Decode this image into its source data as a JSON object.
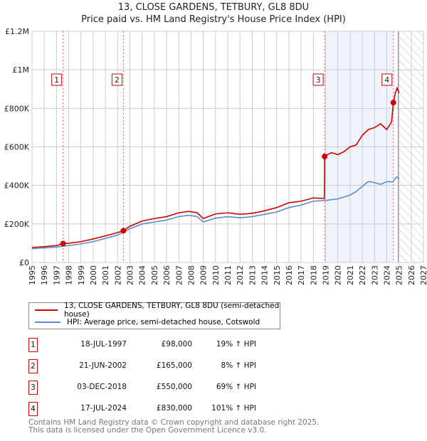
{
  "chart_data": {
    "type": "line",
    "title": "13, CLOSE GARDENS, TETBURY, GL8 8DU",
    "subtitle": "Price paid vs. HM Land Registry's House Price Index (HPI)",
    "xlim": [
      1995,
      2027
    ],
    "ylim": [
      0,
      1200000
    ],
    "x_ticks": [
      "1995",
      "1996",
      "1997",
      "1998",
      "1999",
      "2000",
      "2001",
      "2002",
      "2003",
      "2004",
      "2005",
      "2006",
      "2007",
      "2008",
      "2009",
      "2010",
      "2011",
      "2012",
      "2013",
      "2014",
      "2015",
      "2016",
      "2017",
      "2018",
      "2019",
      "2020",
      "2021",
      "2022",
      "2023",
      "2024",
      "2025",
      "2026",
      "2027"
    ],
    "y_ticks": [
      {
        "v": 0,
        "label": "£0"
      },
      {
        "v": 200000,
        "label": "£200K"
      },
      {
        "v": 400000,
        "label": "£400K"
      },
      {
        "v": 600000,
        "label": "£600K"
      },
      {
        "v": 800000,
        "label": "£800K"
      },
      {
        "v": 1000000,
        "label": "£1M"
      },
      {
        "v": 1200000,
        "label": "£1.2M"
      }
    ],
    "grid": true,
    "series": [
      {
        "name": "13, CLOSE GARDENS, TETBURY, GL8 8DU (semi-detached house)",
        "color": "#cc0000",
        "x": [
          1995,
          1996,
          1997,
          1997.54,
          1998,
          1999,
          2000,
          2001,
          2002,
          2002.47,
          2003,
          2004,
          2005,
          2006,
          2007,
          2007.8,
          2008.5,
          2009,
          2010,
          2011,
          2012,
          2013,
          2014,
          2015,
          2016,
          2017,
          2018,
          2018.9,
          2018.92,
          2019,
          2019.5,
          2020,
          2020.5,
          2021,
          2021.5,
          2022,
          2022.5,
          2023,
          2023.5,
          2024,
          2024.4,
          2024.54,
          2024.7,
          2024.85,
          2025
        ],
        "y": [
          78000,
          82000,
          88000,
          98000,
          100000,
          108000,
          122000,
          138000,
          155000,
          165000,
          188000,
          215000,
          228000,
          238000,
          258000,
          265000,
          258000,
          228000,
          252000,
          258000,
          250000,
          255000,
          268000,
          285000,
          310000,
          318000,
          335000,
          332000,
          550000,
          555000,
          570000,
          560000,
          575000,
          600000,
          610000,
          660000,
          690000,
          700000,
          720000,
          690000,
          730000,
          830000,
          880000,
          905000,
          880000
        ]
      },
      {
        "name": "HPI: Average price, semi-detached house, Cotswold",
        "color": "#5b8fd0",
        "x": [
          1995,
          1996,
          1997,
          1998,
          1999,
          2000,
          2001,
          2002,
          2003,
          2004,
          2005,
          2006,
          2007,
          2007.8,
          2008.5,
          2009,
          2010,
          2011,
          2012,
          2013,
          2014,
          2015,
          2016,
          2017,
          2018,
          2019,
          2020,
          2021,
          2021.5,
          2022,
          2022.5,
          2023,
          2023.5,
          2024,
          2024.5,
          2024.8,
          2025
        ],
        "y": [
          72000,
          76000,
          80000,
          88000,
          96000,
          108000,
          125000,
          142000,
          175000,
          200000,
          210000,
          220000,
          238000,
          245000,
          238000,
          210000,
          230000,
          238000,
          232000,
          238000,
          250000,
          262000,
          285000,
          298000,
          318000,
          322000,
          330000,
          350000,
          368000,
          395000,
          420000,
          415000,
          405000,
          420000,
          418000,
          445000,
          435000
        ]
      }
    ],
    "sales": [
      {
        "n": "1",
        "date": "18-JUL-1997",
        "x": 1997.54,
        "price": "£98,000",
        "value": 98000,
        "hpi": "19% ↑ HPI"
      },
      {
        "n": "2",
        "date": "21-JUN-2002",
        "x": 2002.47,
        "price": "£165,000",
        "value": 165000,
        "hpi": "8% ↑ HPI"
      },
      {
        "n": "3",
        "date": "03-DEC-2018",
        "x": 2018.92,
        "price": "£550,000",
        "value": 550000,
        "hpi": "69% ↑ HPI"
      },
      {
        "n": "4",
        "date": "17-JUL-2024",
        "x": 2024.54,
        "price": "£830,000",
        "value": 830000,
        "hpi": "101% ↑ HPI"
      }
    ],
    "hatch_from": 2025.0
  },
  "footer": {
    "line1": "Contains HM Land Registry data © Crown copyright and database right 2025.",
    "line2": "This data is licensed under the Open Government Licence v3.0."
  }
}
